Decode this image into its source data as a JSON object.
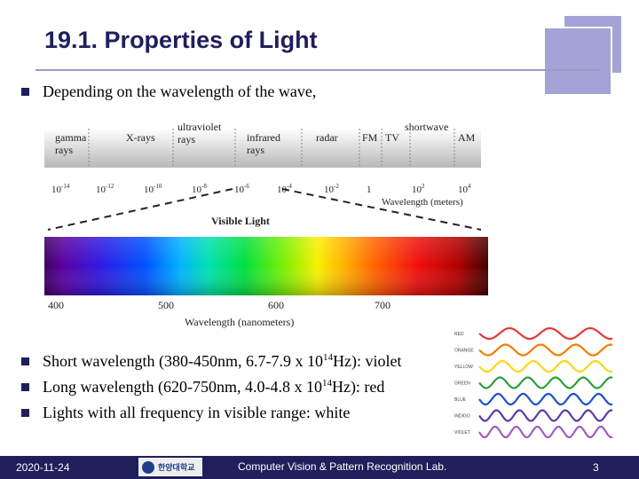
{
  "slide": {
    "title": "19.1. Properties of Light",
    "intro": "Depending on the wavelength of the wave,",
    "bullets": [
      {
        "pre": "Short wavelength (380-450nm, 6.7-7.9 x 10",
        "sup": "14",
        "post": "Hz): violet"
      },
      {
        "pre": "Long wavelength (620-750nm, 4.0-4.8 x 10",
        "sup": "14",
        "post": "Hz): red"
      },
      {
        "pre": "Lights with all frequency in visible range: white",
        "sup": "",
        "post": ""
      }
    ]
  },
  "spectrum": {
    "bands": [
      "gamma rays",
      "X-rays",
      "ultraviolet rays",
      "infrared rays",
      "radar",
      "FM",
      "TV",
      "shortwave",
      "AM"
    ],
    "band_lines": [
      [
        "gamma",
        "rays"
      ],
      [
        "X-rays"
      ],
      [
        "ultraviolet",
        "rays"
      ],
      [
        "infrared",
        "rays"
      ],
      [
        "radar"
      ],
      [
        "FM"
      ],
      [
        "TV"
      ],
      [
        "shortwave"
      ],
      [
        "AM"
      ]
    ],
    "wavelength_ticks": [
      {
        "base": "10",
        "exp": "-14"
      },
      {
        "base": "10",
        "exp": "-12"
      },
      {
        "base": "10",
        "exp": "-10"
      },
      {
        "base": "10",
        "exp": "-8"
      },
      {
        "base": "10",
        "exp": "-6"
      },
      {
        "base": "10",
        "exp": "-4"
      },
      {
        "base": "10",
        "exp": "-2"
      },
      {
        "base": "1",
        "exp": ""
      },
      {
        "base": "10",
        "exp": "2"
      },
      {
        "base": "10",
        "exp": "4"
      }
    ],
    "wavelength_label": "Wavelength (meters)",
    "visible_label": "Visible Light",
    "nm_ticks": [
      "400",
      "500",
      "600",
      "700"
    ],
    "nm_label": "Wavelength (nanometers)"
  },
  "waves": {
    "colors": [
      "RED",
      "ORANGE",
      "YELLOW",
      "GREEN",
      "BLUE",
      "INDIGO",
      "VIOLET"
    ],
    "stroke": [
      "#e53935",
      "#f57c00",
      "#f9d71c",
      "#2e9e3a",
      "#2050c8",
      "#5b3ca8",
      "#a05bc8"
    ]
  },
  "footer": {
    "date": "2020-11-24",
    "lab": "Computer Vision & Pattern Recognition Lab.",
    "page": "3",
    "logo_text": "한양대학교"
  }
}
